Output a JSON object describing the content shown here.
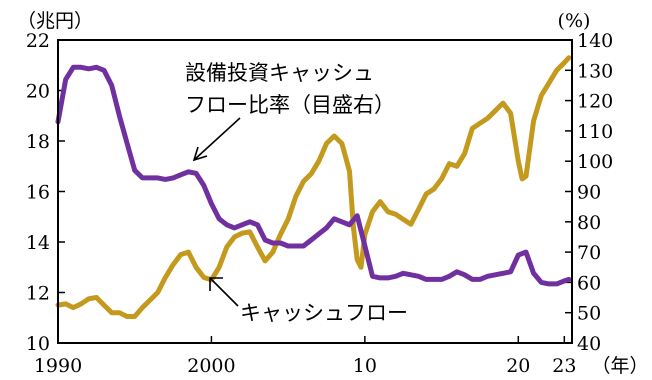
{
  "chart_data": {
    "type": "line",
    "left_axis": {
      "unit": "（兆円）",
      "ylim": [
        10,
        22
      ],
      "ticks": [
        "10",
        "12",
        "14",
        "16",
        "18",
        "20",
        "22"
      ]
    },
    "right_axis": {
      "unit": "(%)",
      "ylim": [
        40,
        140
      ],
      "ticks": [
        "40",
        "50",
        "60",
        "70",
        "80",
        "90",
        "100",
        "110",
        "120",
        "130",
        "140"
      ]
    },
    "x_axis": {
      "unit": "（年）",
      "xlim": [
        1990,
        2023.5
      ],
      "ticks": [
        {
          "x": 1990,
          "label": "1990"
        },
        {
          "x": 2000,
          "label": "2000"
        },
        {
          "x": 2010,
          "label": "10"
        },
        {
          "x": 2020,
          "label": "20"
        },
        {
          "x": 2023,
          "label": "23"
        }
      ]
    },
    "annotations": {
      "ratio_label_line1": "設備投資キャッシュ",
      "ratio_label_line2": "フロー比率（目盛右）",
      "cashflow_label": "キャッシュフロー"
    },
    "series": [
      {
        "key": "cashflow",
        "axis": "left",
        "color": "#C49A1E",
        "points": [
          [
            1990.0,
            11.5
          ],
          [
            1990.5,
            11.55
          ],
          [
            1991.0,
            11.4
          ],
          [
            1991.5,
            11.55
          ],
          [
            1992.0,
            11.75
          ],
          [
            1992.5,
            11.8
          ],
          [
            1993.0,
            11.5
          ],
          [
            1993.5,
            11.2
          ],
          [
            1994.0,
            11.2
          ],
          [
            1994.5,
            11.05
          ],
          [
            1995.0,
            11.05
          ],
          [
            1995.5,
            11.4
          ],
          [
            1996.0,
            11.7
          ],
          [
            1996.5,
            12.0
          ],
          [
            1997.0,
            12.6
          ],
          [
            1997.5,
            13.1
          ],
          [
            1998.0,
            13.5
          ],
          [
            1998.5,
            13.6
          ],
          [
            1999.0,
            13.0
          ],
          [
            1999.5,
            12.6
          ],
          [
            2000.0,
            12.5
          ],
          [
            2000.5,
            13.0
          ],
          [
            2001.0,
            13.8
          ],
          [
            2001.5,
            14.2
          ],
          [
            2002.0,
            14.35
          ],
          [
            2002.5,
            14.4
          ],
          [
            2003.0,
            13.8
          ],
          [
            2003.5,
            13.25
          ],
          [
            2004.0,
            13.6
          ],
          [
            2004.5,
            14.3
          ],
          [
            2005.0,
            14.9
          ],
          [
            2005.5,
            15.8
          ],
          [
            2006.0,
            16.4
          ],
          [
            2006.5,
            16.7
          ],
          [
            2007.0,
            17.2
          ],
          [
            2007.5,
            17.9
          ],
          [
            2008.0,
            18.2
          ],
          [
            2008.5,
            17.9
          ],
          [
            2009.0,
            16.8
          ],
          [
            2009.25,
            14.6
          ],
          [
            2009.5,
            13.3
          ],
          [
            2009.75,
            13.0
          ],
          [
            2010.0,
            14.3
          ],
          [
            2010.5,
            15.2
          ],
          [
            2011.0,
            15.6
          ],
          [
            2011.5,
            15.2
          ],
          [
            2012.0,
            15.1
          ],
          [
            2012.5,
            14.9
          ],
          [
            2013.0,
            14.7
          ],
          [
            2013.5,
            15.3
          ],
          [
            2014.0,
            15.9
          ],
          [
            2014.5,
            16.1
          ],
          [
            2015.0,
            16.5
          ],
          [
            2015.5,
            17.1
          ],
          [
            2016.0,
            17.0
          ],
          [
            2016.5,
            17.5
          ],
          [
            2017.0,
            18.5
          ],
          [
            2017.5,
            18.7
          ],
          [
            2018.0,
            18.9
          ],
          [
            2018.5,
            19.2
          ],
          [
            2019.0,
            19.5
          ],
          [
            2019.5,
            19.1
          ],
          [
            2020.0,
            17.2
          ],
          [
            2020.25,
            16.5
          ],
          [
            2020.5,
            16.6
          ],
          [
            2021.0,
            18.8
          ],
          [
            2021.5,
            19.8
          ],
          [
            2022.0,
            20.3
          ],
          [
            2022.5,
            20.8
          ],
          [
            2023.0,
            21.1
          ],
          [
            2023.3,
            21.3
          ]
        ]
      },
      {
        "key": "ratio",
        "axis": "right",
        "color": "#7030A0",
        "points": [
          [
            1990.0,
            113
          ],
          [
            1990.5,
            127
          ],
          [
            1991.0,
            131
          ],
          [
            1991.5,
            131
          ],
          [
            1992.0,
            130.5
          ],
          [
            1992.5,
            131
          ],
          [
            1993.0,
            130
          ],
          [
            1993.5,
            125
          ],
          [
            1994.0,
            115
          ],
          [
            1994.5,
            106
          ],
          [
            1995.0,
            97
          ],
          [
            1995.5,
            94.5
          ],
          [
            1996.0,
            94.5
          ],
          [
            1996.5,
            94.5
          ],
          [
            1997.0,
            94
          ],
          [
            1997.5,
            94.5
          ],
          [
            1998.0,
            95.5
          ],
          [
            1998.5,
            96.5
          ],
          [
            1999.0,
            96
          ],
          [
            1999.5,
            92
          ],
          [
            2000.0,
            86
          ],
          [
            2000.5,
            81
          ],
          [
            2001.0,
            79
          ],
          [
            2001.5,
            78
          ],
          [
            2002.0,
            79
          ],
          [
            2002.5,
            80
          ],
          [
            2003.0,
            79
          ],
          [
            2003.5,
            74
          ],
          [
            2004.0,
            73
          ],
          [
            2004.5,
            73
          ],
          [
            2005.0,
            72
          ],
          [
            2005.5,
            72
          ],
          [
            2006.0,
            72
          ],
          [
            2006.5,
            74
          ],
          [
            2007.0,
            76
          ],
          [
            2007.5,
            78
          ],
          [
            2008.0,
            81
          ],
          [
            2008.5,
            80
          ],
          [
            2009.0,
            79
          ],
          [
            2009.5,
            82
          ],
          [
            2010.0,
            72
          ],
          [
            2010.5,
            62
          ],
          [
            2011.0,
            61.5
          ],
          [
            2011.5,
            61.5
          ],
          [
            2012.0,
            62
          ],
          [
            2012.5,
            63
          ],
          [
            2013.0,
            62.5
          ],
          [
            2013.5,
            62
          ],
          [
            2014.0,
            61
          ],
          [
            2014.5,
            61
          ],
          [
            2015.0,
            61
          ],
          [
            2015.5,
            62
          ],
          [
            2016.0,
            63.5
          ],
          [
            2016.5,
            62.5
          ],
          [
            2017.0,
            61
          ],
          [
            2017.5,
            61
          ],
          [
            2018.0,
            62
          ],
          [
            2018.5,
            62.5
          ],
          [
            2019.0,
            63
          ],
          [
            2019.5,
            63.5
          ],
          [
            2020.0,
            69
          ],
          [
            2020.5,
            70
          ],
          [
            2021.0,
            63
          ],
          [
            2021.5,
            60
          ],
          [
            2022.0,
            59.5
          ],
          [
            2022.5,
            59.5
          ],
          [
            2023.0,
            60.5
          ],
          [
            2023.3,
            61
          ]
        ]
      }
    ]
  }
}
